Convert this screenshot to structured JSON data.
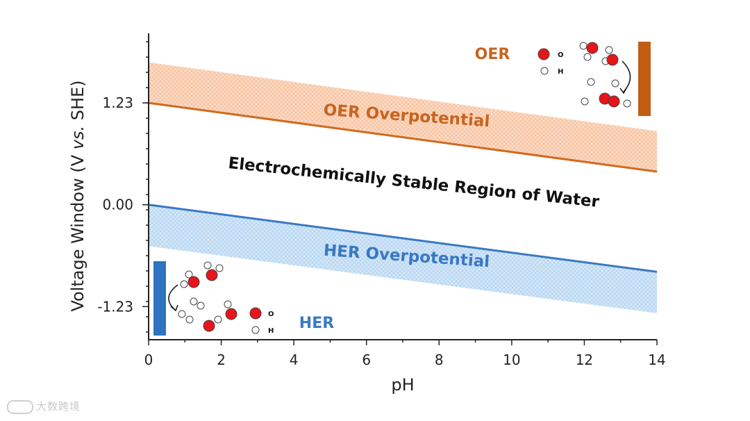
{
  "chart_data": {
    "type": "area",
    "title": "",
    "xlabel": "pH",
    "ylabel_parts": [
      "Voltage Window (V ",
      "vs.",
      " SHE)"
    ],
    "x_ticks": [
      0,
      2,
      4,
      6,
      8,
      10,
      12,
      14
    ],
    "x_tick_labels": [
      "0",
      "2",
      "4",
      "6",
      "8",
      "10",
      "12",
      "14"
    ],
    "y_ticks": [
      1.23,
      0.0,
      -1.23
    ],
    "y_tick_labels": [
      "1.23",
      "0.00",
      "-1.23"
    ],
    "xlim": [
      0,
      14
    ],
    "ylim": [
      -1.63,
      2.07
    ],
    "series": [
      {
        "name": "OER",
        "x": [
          0,
          14
        ],
        "values": [
          1.23,
          0.4
        ],
        "color": "#cf6a1f"
      },
      {
        "name": "HER",
        "x": [
          0,
          14
        ],
        "values": [
          0.0,
          -0.81
        ],
        "color": "#3a78c2"
      }
    ],
    "bands": [
      {
        "name": "OER Overpotential",
        "x": [
          0,
          14
        ],
        "lower": [
          1.23,
          0.4
        ],
        "upper": [
          1.72,
          0.89
        ],
        "color": "#f5b48a"
      },
      {
        "name": "HER Overpotential",
        "x": [
          0,
          14
        ],
        "lower": [
          -0.5,
          -1.31
        ],
        "upper": [
          0.0,
          -0.81
        ],
        "color": "#9ac4ec"
      }
    ],
    "annotations": {
      "oer_overpotential": "OER Overpotential",
      "her_overpotential": "HER Overpotential",
      "stable_region": "Electrochemically Stable Region of Water",
      "oer": "OER",
      "her": "HER",
      "legend_o": "O",
      "legend_h": "H"
    },
    "colors": {
      "oer": "#c8641e",
      "her": "#3a78c2",
      "electrode_oer": "#c25d14",
      "electrode_her": "#2f74be",
      "oxygen": "#e8141a",
      "axis": "#222222"
    }
  },
  "watermark": {
    "text": "大数跨境"
  }
}
